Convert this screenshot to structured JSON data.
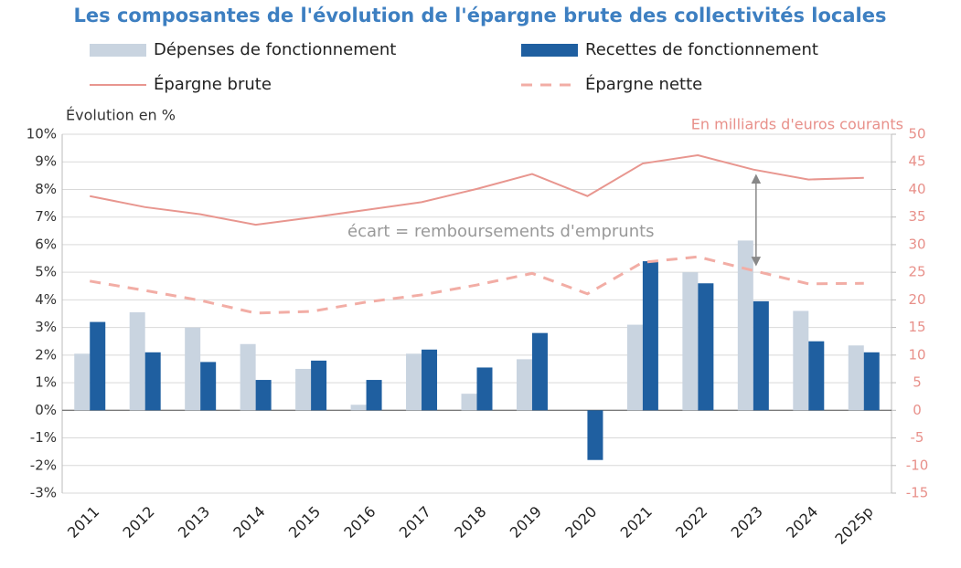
{
  "chart_data": {
    "type": "bar",
    "title": "Les composantes de l'évolution de l'épargne brute des collectivités locales",
    "y_label": "Évolution en %",
    "y2_label": "En milliards d'euros courants",
    "annotation": "écart = remboursements d'emprunts",
    "categories": [
      "2011",
      "2012",
      "2013",
      "2014",
      "2015",
      "2016",
      "2017",
      "2018",
      "2019",
      "2020",
      "2021",
      "2022",
      "2023",
      "2024",
      "2025p"
    ],
    "series": [
      {
        "name": "Dépenses de fonctionnement",
        "type": "bar",
        "color": "#c9d4e0",
        "values": [
          2.05,
          3.55,
          3.0,
          2.4,
          1.5,
          0.2,
          2.05,
          0.6,
          1.85,
          0,
          3.1,
          5.0,
          6.15,
          3.6,
          2.35
        ]
      },
      {
        "name": "Recettes de fonctionnement",
        "type": "bar",
        "color": "#1f5fa0",
        "values": [
          3.2,
          2.1,
          1.75,
          1.1,
          1.8,
          1.1,
          2.2,
          1.55,
          2.8,
          -1.8,
          5.4,
          4.6,
          3.95,
          2.5,
          2.1
        ]
      },
      {
        "name": "Épargne brute",
        "type": "line",
        "axis": "y2",
        "color": "#e8968f",
        "values": [
          38.8,
          36.8,
          35.5,
          33.6,
          34.9,
          36.3,
          37.7,
          40.1,
          42.8,
          38.8,
          44.7,
          46.2,
          43.6,
          41.8,
          42.1
        ]
      },
      {
        "name": "Épargne nette",
        "type": "line",
        "axis": "y2",
        "dashed": true,
        "color": "#f2ada5",
        "values": [
          23.4,
          21.7,
          19.9,
          17.6,
          17.9,
          19.6,
          20.9,
          22.7,
          24.8,
          21.1,
          26.8,
          27.8,
          25.3,
          22.9,
          23.0
        ]
      }
    ],
    "ylim": [
      -3,
      10
    ],
    "yticks": [
      {
        "value": -3,
        "label": "-3%"
      },
      {
        "value": -2,
        "label": "-2%"
      },
      {
        "value": -1,
        "label": "-1%"
      },
      {
        "value": 0,
        "label": "0%"
      },
      {
        "value": 1,
        "label": "1%"
      },
      {
        "value": 2,
        "label": "2%"
      },
      {
        "value": 3,
        "label": "3%"
      },
      {
        "value": 4,
        "label": "4%"
      },
      {
        "value": 5,
        "label": "5%"
      },
      {
        "value": 6,
        "label": "6%"
      },
      {
        "value": 7,
        "label": "7%"
      },
      {
        "value": 8,
        "label": "8%"
      },
      {
        "value": 9,
        "label": "9%"
      },
      {
        "value": 10,
        "label": "10%"
      }
    ],
    "y2lim": [
      -15,
      50
    ],
    "y2ticks": [
      -15,
      -10,
      -5,
      0,
      5,
      10,
      15,
      20,
      25,
      30,
      35,
      40,
      45,
      50
    ],
    "grid": true
  }
}
